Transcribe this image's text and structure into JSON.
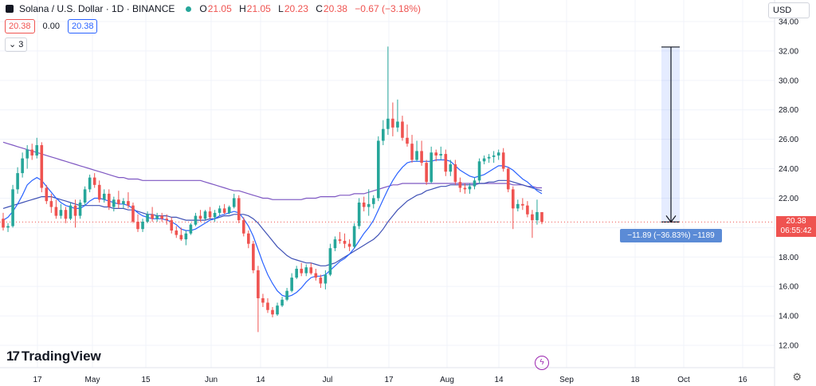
{
  "header": {
    "symbol": "Solana / U.S. Dollar · 1D · BINANCE",
    "open_label": "O",
    "open": "21.05",
    "high_label": "H",
    "high": "21.05",
    "low_label": "L",
    "low": "20.23",
    "close_label": "C",
    "close": "20.38",
    "change": "−0.67 (−3.18%)"
  },
  "quote": {
    "bid": "20.38",
    "spread": "0.00",
    "ask": "20.38"
  },
  "indicators_badge": "3",
  "currency": "USD",
  "brand": "TradingView",
  "price_label": {
    "price": "20.38",
    "countdown": "06:55:42"
  },
  "measure_label": "−11.89 (−36.83%) −1189",
  "colors": {
    "up": "#26a69a",
    "down": "#ef5350",
    "ma_fast": "#2962ff",
    "ma_slow": "#7e57c2",
    "ma_mid": "#3f51b5"
  },
  "chart_data": {
    "type": "candlestick",
    "y_axis_ticks": [
      "34.00",
      "32.00",
      "30.00",
      "28.00",
      "26.00",
      "24.00",
      "22.00",
      "20.00",
      "18.00",
      "16.00",
      "14.00",
      "12.00"
    ],
    "ylim": [
      11,
      35
    ],
    "x_axis_ticks": [
      "17",
      "May",
      "15",
      "Jun",
      "14",
      "Jul",
      "17",
      "Aug",
      "14",
      "Sep",
      "18",
      "Oct",
      "16"
    ],
    "candles": [
      [
        20.6,
        21.0,
        19.8,
        20.0
      ],
      [
        20.0,
        20.3,
        19.7,
        20.1
      ],
      [
        20.1,
        22.9,
        20.0,
        22.6
      ],
      [
        22.6,
        24.1,
        22.3,
        23.7
      ],
      [
        23.7,
        25.1,
        23.4,
        24.7
      ],
      [
        24.7,
        25.6,
        24.0,
        25.3
      ],
      [
        25.3,
        25.7,
        24.6,
        24.9
      ],
      [
        24.9,
        26.1,
        24.7,
        25.6
      ],
      [
        25.6,
        25.8,
        22.4,
        22.7
      ],
      [
        22.7,
        22.9,
        21.6,
        21.8
      ],
      [
        21.8,
        22.3,
        21.0,
        21.4
      ],
      [
        21.4,
        21.9,
        20.6,
        20.8
      ],
      [
        20.8,
        21.6,
        20.6,
        21.2
      ],
      [
        21.2,
        21.4,
        20.3,
        20.6
      ],
      [
        20.6,
        21.7,
        20.5,
        21.5
      ],
      [
        21.5,
        21.9,
        20.0,
        20.8
      ],
      [
        20.8,
        21.9,
        20.6,
        21.7
      ],
      [
        21.7,
        22.8,
        21.5,
        22.6
      ],
      [
        22.6,
        23.6,
        22.4,
        23.4
      ],
      [
        23.4,
        23.7,
        22.7,
        22.9
      ],
      [
        22.9,
        23.2,
        21.7,
        21.9
      ],
      [
        21.9,
        22.6,
        21.7,
        22.3
      ],
      [
        22.3,
        22.6,
        21.2,
        21.4
      ],
      [
        21.4,
        22.1,
        21.1,
        21.9
      ],
      [
        21.9,
        22.5,
        21.3,
        21.6
      ],
      [
        21.6,
        22.0,
        21.3,
        21.8
      ],
      [
        21.8,
        22.4,
        21.3,
        21.5
      ],
      [
        21.5,
        21.7,
        20.3,
        20.4
      ],
      [
        20.4,
        20.9,
        19.7,
        19.9
      ],
      [
        19.9,
        20.6,
        19.7,
        20.4
      ],
      [
        20.4,
        21.1,
        20.3,
        20.9
      ],
      [
        20.9,
        21.4,
        20.4,
        20.6
      ],
      [
        20.6,
        21.0,
        20.4,
        20.8
      ],
      [
        20.8,
        21.0,
        20.4,
        20.6
      ],
      [
        20.6,
        20.9,
        20.2,
        20.5
      ],
      [
        20.5,
        20.7,
        19.6,
        19.8
      ],
      [
        19.8,
        20.1,
        19.3,
        19.5
      ],
      [
        19.5,
        20.0,
        19.1,
        19.2
      ],
      [
        19.2,
        19.8,
        18.8,
        19.6
      ],
      [
        19.6,
        20.3,
        19.5,
        20.2
      ],
      [
        20.2,
        21.0,
        20.1,
        20.8
      ],
      [
        20.8,
        21.2,
        20.4,
        20.6
      ],
      [
        20.6,
        21.2,
        20.5,
        21.1
      ],
      [
        21.1,
        21.4,
        20.6,
        20.7
      ],
      [
        20.7,
        21.2,
        20.4,
        21.0
      ],
      [
        21.0,
        21.5,
        20.8,
        21.3
      ],
      [
        21.3,
        21.6,
        20.9,
        21.0
      ],
      [
        21.0,
        21.5,
        20.9,
        21.4
      ],
      [
        21.4,
        22.3,
        21.3,
        22.0
      ],
      [
        22.0,
        22.2,
        20.3,
        20.5
      ],
      [
        20.5,
        20.7,
        19.4,
        19.6
      ],
      [
        19.6,
        19.8,
        18.6,
        18.9
      ],
      [
        18.9,
        19.1,
        16.9,
        17.1
      ],
      [
        17.1,
        17.4,
        12.9,
        15.2
      ],
      [
        15.2,
        15.5,
        14.6,
        14.9
      ],
      [
        14.9,
        15.2,
        14.2,
        14.4
      ],
      [
        14.4,
        14.6,
        13.9,
        14.1
      ],
      [
        14.1,
        14.9,
        14.0,
        14.7
      ],
      [
        14.7,
        15.3,
        14.6,
        15.1
      ],
      [
        15.1,
        15.9,
        15.0,
        15.7
      ],
      [
        15.7,
        16.9,
        15.6,
        16.6
      ],
      [
        16.6,
        17.4,
        16.5,
        17.2
      ],
      [
        17.2,
        17.6,
        16.7,
        16.9
      ],
      [
        16.9,
        17.5,
        16.7,
        17.3
      ],
      [
        17.3,
        17.6,
        16.8,
        16.9
      ],
      [
        16.9,
        17.2,
        16.4,
        16.6
      ],
      [
        16.6,
        16.8,
        15.9,
        16.2
      ],
      [
        16.2,
        17.1,
        15.8,
        16.8
      ],
      [
        16.8,
        18.9,
        16.7,
        18.6
      ],
      [
        18.6,
        19.4,
        18.4,
        19.2
      ],
      [
        19.2,
        19.7,
        18.9,
        19.1
      ],
      [
        19.1,
        19.6,
        18.6,
        18.9
      ],
      [
        18.9,
        19.2,
        18.4,
        18.7
      ],
      [
        18.7,
        20.3,
        18.6,
        20.1
      ],
      [
        20.1,
        22.0,
        19.9,
        21.7
      ],
      [
        21.7,
        22.1,
        21.1,
        21.4
      ],
      [
        21.4,
        22.6,
        20.8,
        21.6
      ],
      [
        21.6,
        22.2,
        21.3,
        22.0
      ],
      [
        22.0,
        26.2,
        21.8,
        25.9
      ],
      [
        25.9,
        27.3,
        25.6,
        26.7
      ],
      [
        26.7,
        32.3,
        26.3,
        27.4
      ],
      [
        27.4,
        28.5,
        26.2,
        26.8
      ],
      [
        26.8,
        28.7,
        26.5,
        27.2
      ],
      [
        27.2,
        27.6,
        25.9,
        26.1
      ],
      [
        26.1,
        27.0,
        25.5,
        25.7
      ],
      [
        25.7,
        26.3,
        24.4,
        24.6
      ],
      [
        24.6,
        25.9,
        24.5,
        25.2
      ],
      [
        25.2,
        25.9,
        24.2,
        24.4
      ],
      [
        24.4,
        24.6,
        22.9,
        23.1
      ],
      [
        23.1,
        25.5,
        23.0,
        25.1
      ],
      [
        25.1,
        25.3,
        24.5,
        24.9
      ],
      [
        24.9,
        25.5,
        24.6,
        25.0
      ],
      [
        25.0,
        25.3,
        23.5,
        23.8
      ],
      [
        23.8,
        24.6,
        23.5,
        24.3
      ],
      [
        24.3,
        24.6,
        22.9,
        23.1
      ],
      [
        23.1,
        23.4,
        22.4,
        22.7
      ],
      [
        22.7,
        23.0,
        22.3,
        22.6
      ],
      [
        22.6,
        23.0,
        22.3,
        22.8
      ],
      [
        22.8,
        23.4,
        22.6,
        23.2
      ],
      [
        23.2,
        24.7,
        23.0,
        24.5
      ],
      [
        24.5,
        24.9,
        24.3,
        24.7
      ],
      [
        24.7,
        25.0,
        24.4,
        24.8
      ],
      [
        24.8,
        25.2,
        24.4,
        24.9
      ],
      [
        24.9,
        25.3,
        24.6,
        25.1
      ],
      [
        25.1,
        25.4,
        23.8,
        24.0
      ],
      [
        24.0,
        24.1,
        22.4,
        22.6
      ],
      [
        22.6,
        22.8,
        19.9,
        21.3
      ],
      [
        21.3,
        21.9,
        21.1,
        21.6
      ],
      [
        21.6,
        22.0,
        21.2,
        21.5
      ],
      [
        21.5,
        21.8,
        20.7,
        20.9
      ],
      [
        20.9,
        21.2,
        19.3,
        20.5
      ],
      [
        20.5,
        21.9,
        20.2,
        21.05
      ],
      [
        21.05,
        21.05,
        20.23,
        20.38
      ]
    ],
    "ma_fast": [
      20.5,
      20.7,
      21.1,
      21.6,
      22.2,
      22.9,
      23.2,
      23.4,
      23.2,
      22.8,
      22.4,
      22.0,
      21.7,
      21.5,
      21.4,
      21.3,
      21.3,
      21.5,
      21.8,
      22.0,
      22.0,
      21.9,
      21.8,
      21.7,
      21.6,
      21.6,
      21.5,
      21.3,
      21.0,
      20.8,
      20.7,
      20.6,
      20.6,
      20.6,
      20.5,
      20.4,
      20.2,
      19.9,
      19.8,
      19.8,
      19.9,
      20.1,
      20.3,
      20.5,
      20.6,
      20.8,
      20.9,
      21.0,
      21.1,
      21.0,
      20.6,
      20.1,
      19.4,
      18.5,
      17.6,
      16.8,
      16.2,
      15.7,
      15.4,
      15.3,
      15.4,
      15.6,
      15.9,
      16.3,
      16.6,
      16.7,
      16.7,
      16.8,
      17.1,
      17.4,
      17.7,
      17.9,
      18.2,
      18.6,
      19.1,
      19.6,
      20.0,
      20.5,
      21.2,
      21.9,
      22.6,
      23.2,
      23.7,
      24.1,
      24.4,
      24.5,
      24.5,
      24.5,
      24.5,
      24.5,
      24.6,
      24.6,
      24.6,
      24.5,
      24.2,
      23.9,
      23.7,
      23.5,
      23.4,
      23.5,
      23.6,
      23.8,
      24.0,
      24.2,
      24.2,
      24.1,
      23.9,
      23.6,
      23.3,
      23.1,
      22.8,
      22.5,
      22.3
    ],
    "ma_slow": [
      21.3,
      21.4,
      21.5,
      21.6,
      21.7,
      21.8,
      21.9,
      22.0,
      22.1,
      22.1,
      22.1,
      22.0,
      21.9,
      21.8,
      21.7,
      21.6,
      21.5,
      21.5,
      21.5,
      21.5,
      21.5,
      21.4,
      21.4,
      21.3,
      21.3,
      21.3,
      21.2,
      21.2,
      21.1,
      21.0,
      20.9,
      20.9,
      20.8,
      20.8,
      20.8,
      20.7,
      20.7,
      20.6,
      20.5,
      20.5,
      20.5,
      20.5,
      20.5,
      20.6,
      20.6,
      20.7,
      20.8,
      20.8,
      20.9,
      20.9,
      20.9,
      20.8,
      20.6,
      20.3,
      19.9,
      19.5,
      19.1,
      18.7,
      18.4,
      18.1,
      17.9,
      17.8,
      17.7,
      17.6,
      17.6,
      17.5,
      17.4,
      17.4,
      17.5,
      17.6,
      17.8,
      18.0,
      18.2,
      18.4,
      18.6,
      18.8,
      19.0,
      19.2,
      19.5,
      19.9,
      20.4,
      20.8,
      21.2,
      21.5,
      21.8,
      22.0,
      22.2,
      22.3,
      22.5,
      22.6,
      22.7,
      22.8,
      22.8,
      22.9,
      22.9,
      22.9,
      22.9,
      22.9,
      22.9,
      23.0,
      23.0,
      23.1,
      23.1,
      23.2,
      23.2,
      23.2,
      23.1,
      23.0,
      22.9,
      22.8,
      22.7,
      22.6,
      22.5
    ],
    "ma_long": [
      25.8,
      25.7,
      25.6,
      25.5,
      25.4,
      25.3,
      25.2,
      25.1,
      25.0,
      24.9,
      24.8,
      24.7,
      24.6,
      24.5,
      24.4,
      24.3,
      24.2,
      24.1,
      24.0,
      23.9,
      23.8,
      23.7,
      23.6,
      23.5,
      23.4,
      23.4,
      23.3,
      23.3,
      23.3,
      23.2,
      23.2,
      23.2,
      23.2,
      23.2,
      23.2,
      23.2,
      23.2,
      23.2,
      23.2,
      23.2,
      23.2,
      23.2,
      23.1,
      23.0,
      22.9,
      22.8,
      22.7,
      22.6,
      22.5,
      22.5,
      22.4,
      22.3,
      22.2,
      22.1,
      22.0,
      22.0,
      21.9,
      21.9,
      21.9,
      21.9,
      21.9,
      21.9,
      21.9,
      22.0,
      22.0,
      22.0,
      22.1,
      22.1,
      22.1,
      22.1,
      22.2,
      22.2,
      22.2,
      22.3,
      22.3,
      22.3,
      22.4,
      22.5,
      22.6,
      22.7,
      22.8,
      22.9,
      22.9,
      23.0,
      23.0,
      23.0,
      23.0,
      23.0,
      23.0,
      23.0,
      23.0,
      23.0,
      23.0,
      23.0,
      23.0,
      23.0,
      23.0,
      23.0,
      23.0,
      23.0,
      23.0,
      23.0,
      23.0,
      23.0,
      23.0,
      23.0,
      22.9,
      22.9,
      22.9,
      22.8,
      22.8,
      22.7,
      22.7
    ],
    "measure": {
      "from_price": 32.27,
      "to_price": 20.38,
      "change": "−11.89 (−36.83%) −1189"
    }
  }
}
